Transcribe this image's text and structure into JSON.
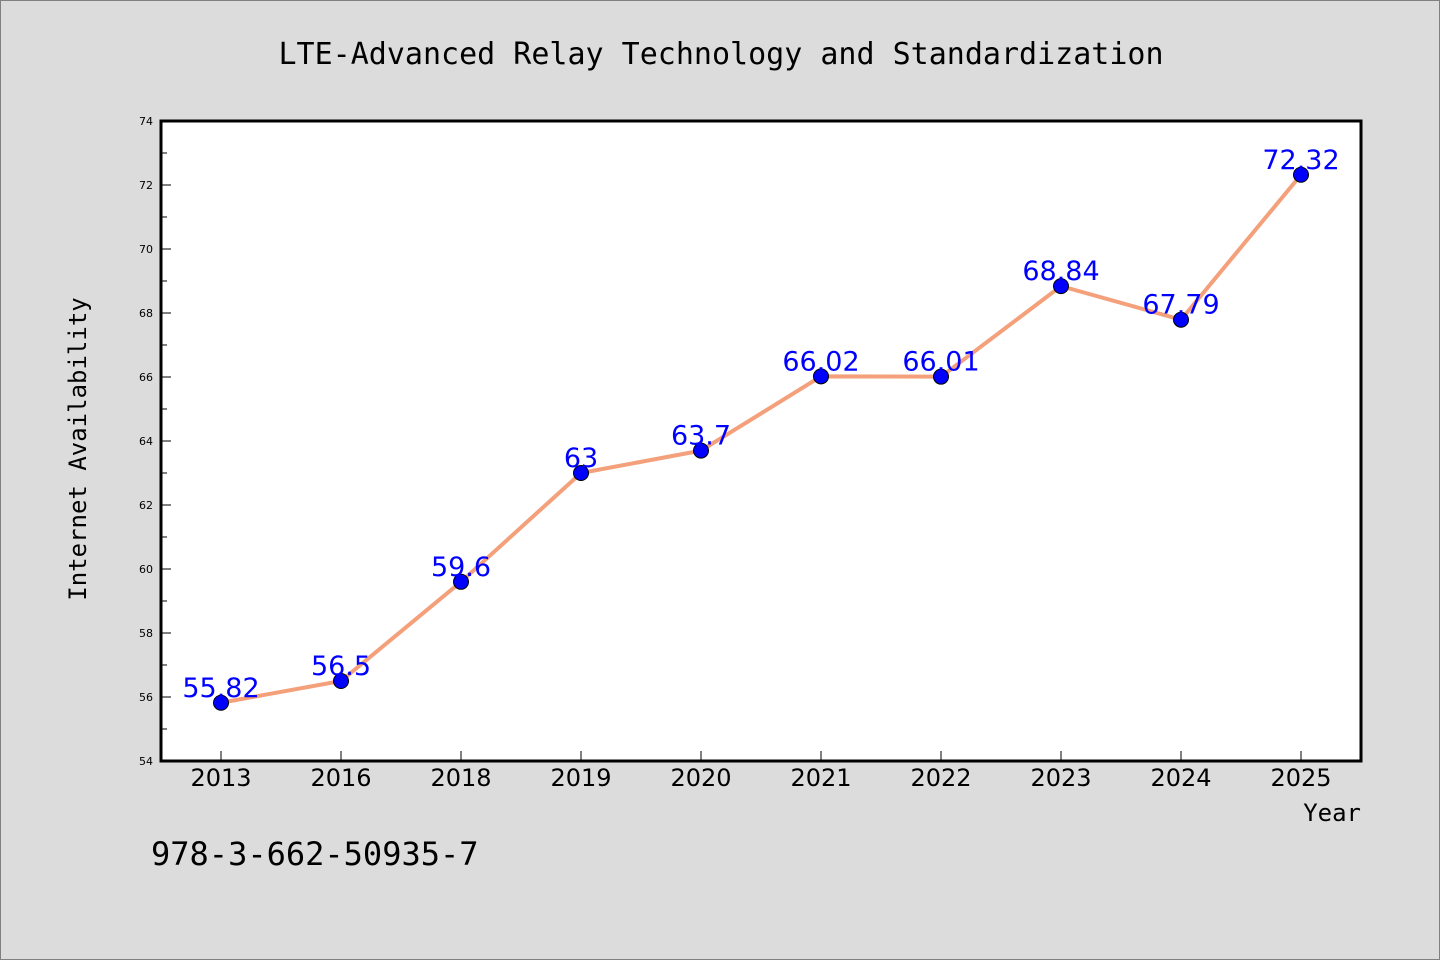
{
  "chart_data": {
    "type": "line",
    "title": "LTE-Advanced Relay Technology and Standardization",
    "xlabel": "Year",
    "ylabel": "Internet Availability",
    "categories": [
      "2013",
      "2016",
      "2018",
      "2019",
      "2020",
      "2021",
      "2022",
      "2023",
      "2024",
      "2025"
    ],
    "series": [
      {
        "values": [
          55.82,
          56.5,
          59.6,
          63,
          63.7,
          66.02,
          66.01,
          68.84,
          67.79,
          72.32
        ],
        "data_labels": [
          "55.82",
          "56.5",
          "59.6",
          "63",
          "63.7",
          "66.02",
          "66.01",
          "68.84",
          "67.79",
          "72.32"
        ],
        "line_color": "#f4a07a",
        "marker_color": "#0000ff",
        "label_color": "#0000ff"
      }
    ],
    "ylim": [
      54,
      74
    ],
    "yticks": [
      54,
      56,
      58,
      60,
      62,
      64,
      66,
      68,
      70,
      72,
      74
    ],
    "ytick_labels": [
      "54",
      "56",
      "58",
      "60",
      "62",
      "64",
      "66",
      "68",
      "70",
      "72",
      "74"
    ],
    "grid": false,
    "legend": "none"
  },
  "footnote": "978-3-662-50935-7",
  "colors": {
    "background": "#dcdcdc",
    "plot_area": "#ffffff",
    "axes": "#000000"
  }
}
